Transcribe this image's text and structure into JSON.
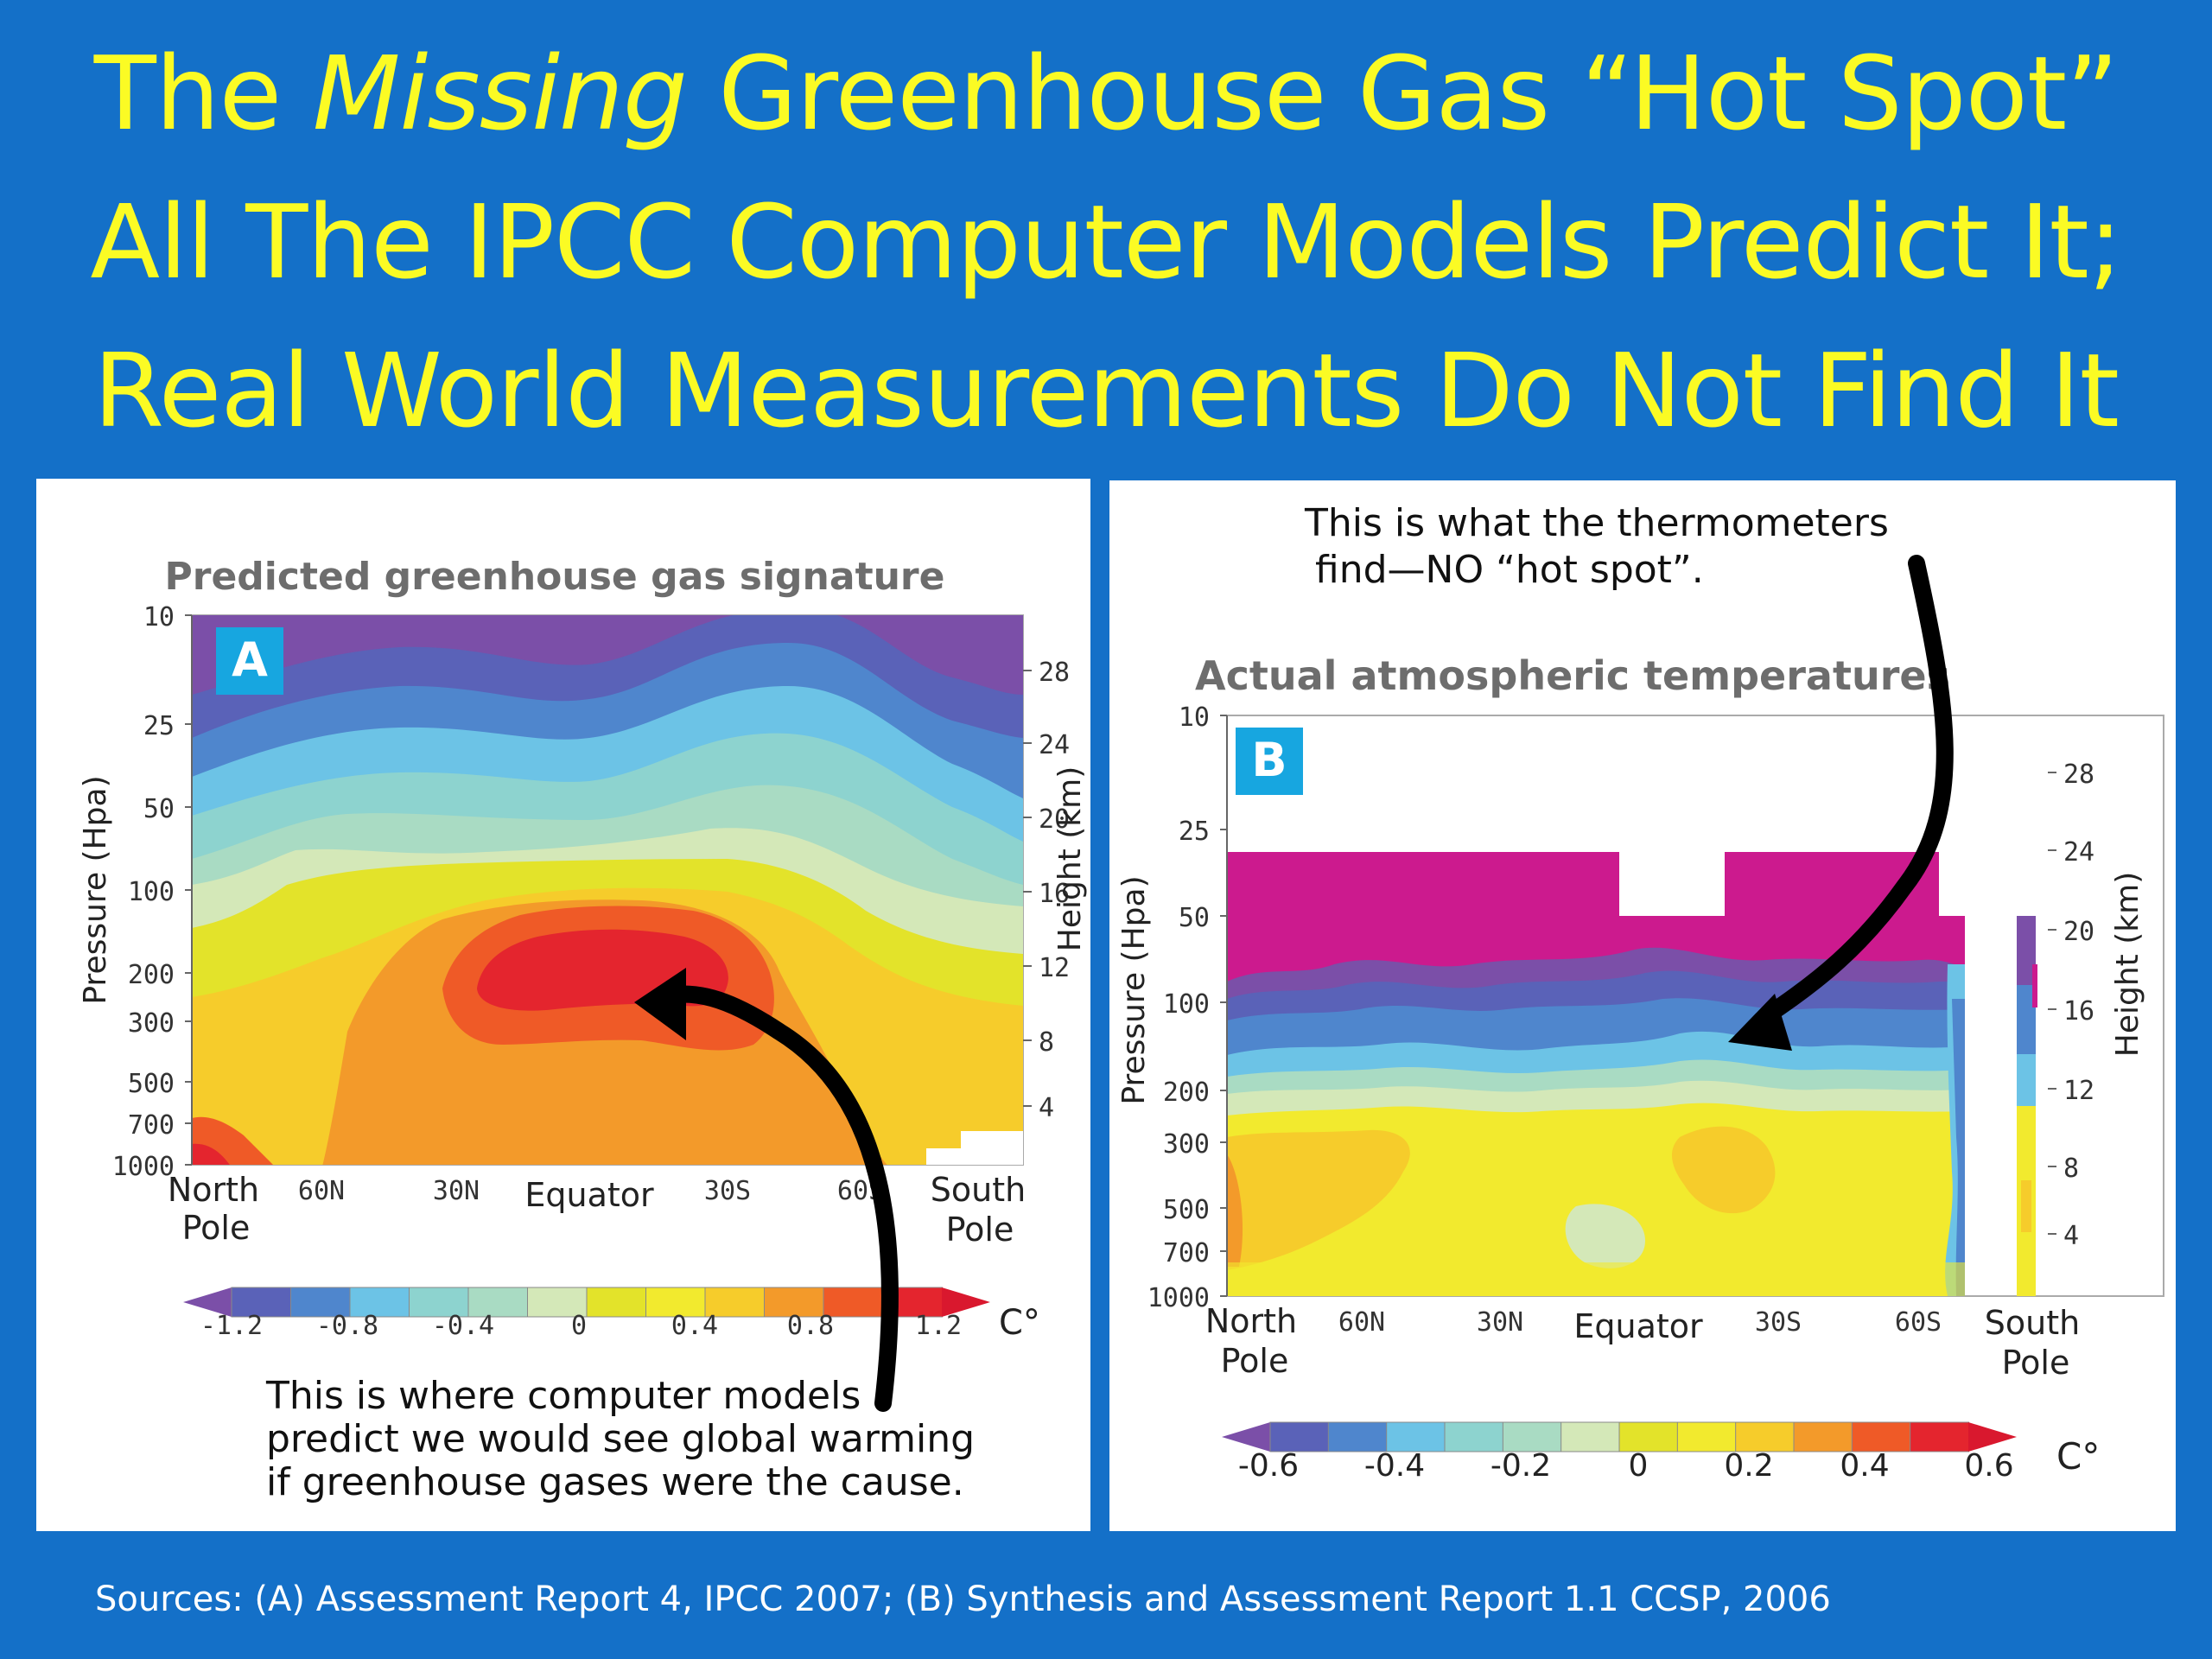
{
  "title": {
    "line1_before": "The ",
    "line1_italic": "Missing",
    "line1_after": "  Greenhouse Gas “Hot Spot”",
    "line2": "All The  IPCC Computer Models Predict It;",
    "line3": "Real World Measurements Do Not Find It"
  },
  "colors": {
    "background": "#1470c8",
    "title_text": "#fbfb24",
    "panel_bg": "#ffffff",
    "badge": "#17a6e0"
  },
  "sources": "Sources: (A) Assessment Report 4, IPCC  2007; (B) Synthesis and Assessment Report 1.1 CCSP, 2006",
  "chart_data": [
    {
      "type": "heatmap",
      "badge": "A",
      "title": "Predicted greenhouse gas signature",
      "ylabel": "Pressure (Hpa)",
      "ylabel_right": "Height (km)",
      "pressure_ticks": [
        "10",
        "25",
        "50",
        "100",
        "200",
        "300",
        "500",
        "700",
        "1000"
      ],
      "height_ticks": [
        "28",
        "24",
        "20",
        "16",
        "12",
        "8",
        "4"
      ],
      "x_ticks": [
        "60N",
        "30N",
        "30S",
        "60S"
      ],
      "x_labels": {
        "left_top": "North",
        "left_bottom": "Pole",
        "center": "Equator",
        "right_top": "South",
        "right_bottom": "Pole"
      },
      "colorbar": {
        "ticks": [
          "-1.2",
          "-0.8",
          "-0.4",
          "0",
          "0.4",
          "0.8",
          "1.2"
        ],
        "unit": "C°",
        "colors": [
          "#7b4fa8",
          "#5a62b8",
          "#4f86cd",
          "#6cc3e6",
          "#8dd3cf",
          "#a9dbc3",
          "#d4e8b8",
          "#e3e32a",
          "#f2ea2e",
          "#f6cc2b",
          "#f39a2a",
          "#ef5a27",
          "#e4252e",
          "#d9182e"
        ]
      },
      "annotation": {
        "line1": "This is where computer models",
        "line2": "predict we would see global warming",
        "line3": "if greenhouse gases were the cause."
      }
    },
    {
      "type": "heatmap",
      "badge": "B",
      "title": "Actual atmospheric temperatures",
      "ylabel": "Pressure (Hpa)",
      "ylabel_right": "Height (km)",
      "pressure_ticks": [
        "10",
        "25",
        "50",
        "100",
        "200",
        "300",
        "500",
        "700",
        "1000"
      ],
      "height_ticks": [
        "28",
        "24",
        "20",
        "16",
        "12",
        "8",
        "4"
      ],
      "x_ticks": [
        "60N",
        "30N",
        "30S",
        "60S"
      ],
      "x_labels": {
        "left_top": "North",
        "left_bottom": "Pole",
        "center": "Equator",
        "right_top": "South",
        "right_bottom": "Pole"
      },
      "colorbar": {
        "ticks": [
          "-0.6",
          "-0.4",
          "-0.2",
          "0",
          "0.2",
          "0.4",
          "0.6"
        ],
        "unit": "C°",
        "colors": [
          "#7b4fa8",
          "#5a62b8",
          "#4f86cd",
          "#6cc3e6",
          "#8dd3cf",
          "#a9dbc3",
          "#d4e8b8",
          "#e3e32a",
          "#f2ea2e",
          "#f6cc2b",
          "#f39a2a",
          "#ef5a27",
          "#e4252e",
          "#d9182e"
        ]
      },
      "annotation": {
        "line1": "This is what the thermometers",
        "line2": "find—NO “hot spot”."
      }
    }
  ]
}
